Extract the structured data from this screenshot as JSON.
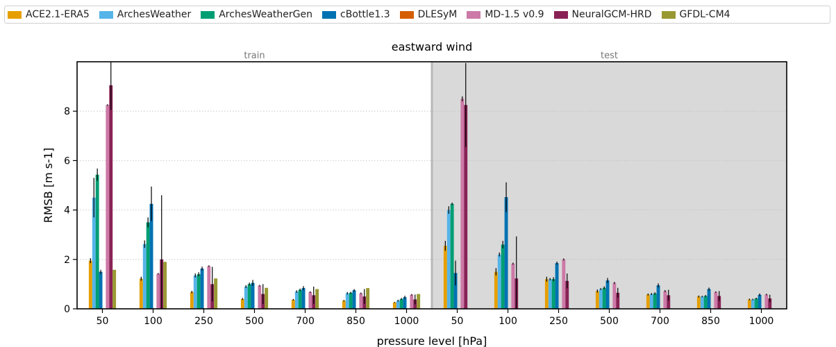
{
  "chart_data": {
    "type": "bar",
    "title": "eastward wind",
    "xlabel": "pressure level [hPa]",
    "ylabel": "RMSB [m s-1]",
    "ylim": [
      0,
      10
    ],
    "yticks": [
      0,
      2,
      4,
      6,
      8
    ],
    "grid": "horizontal dotted",
    "legend_position": "top",
    "groups": [
      {
        "label": "train",
        "shaded": false
      },
      {
        "label": "test",
        "shaded": true
      }
    ],
    "categories": [
      "50",
      "100",
      "250",
      "500",
      "700",
      "850",
      "1000",
      "50",
      "100",
      "250",
      "500",
      "700",
      "850",
      "1000"
    ],
    "series": [
      {
        "name": "ACE2.1-ERA5",
        "color": "#E69F00",
        "values": [
          1.95,
          1.22,
          0.68,
          0.4,
          0.37,
          0.33,
          0.26,
          2.55,
          1.5,
          1.2,
          0.72,
          0.58,
          0.5,
          0.38
        ],
        "err": [
          0.1,
          0.08,
          0.05,
          0.04,
          0.03,
          0.03,
          0.02,
          0.2,
          0.15,
          0.1,
          0.06,
          0.04,
          0.04,
          0.03
        ]
      },
      {
        "name": "ArchesWeather",
        "color": "#56B4E9",
        "values": [
          4.5,
          2.62,
          1.35,
          0.9,
          0.7,
          0.63,
          0.33,
          4.0,
          2.2,
          1.2,
          0.8,
          0.6,
          0.5,
          0.38
        ],
        "err": [
          0.8,
          0.15,
          0.08,
          0.06,
          0.05,
          0.05,
          0.04,
          0.15,
          0.08,
          0.05,
          0.04,
          0.04,
          0.03,
          0.03
        ]
      },
      {
        "name": "ArchesWeatherGen",
        "color": "#009E73",
        "values": [
          5.43,
          3.5,
          1.4,
          1.0,
          0.77,
          0.65,
          0.4,
          4.25,
          2.6,
          1.2,
          0.85,
          0.62,
          0.52,
          0.42
        ],
        "err": [
          0.25,
          0.2,
          0.08,
          0.06,
          0.05,
          0.04,
          0.04,
          0.05,
          0.15,
          0.08,
          0.06,
          0.05,
          0.04,
          0.03
        ]
      },
      {
        "name": "cBottle1.3",
        "color": "#0072B2",
        "values": [
          1.5,
          4.25,
          1.63,
          1.05,
          0.84,
          0.75,
          0.47,
          1.45,
          4.52,
          1.85,
          1.15,
          0.95,
          0.8,
          0.57
        ],
        "err": [
          0.08,
          0.7,
          0.08,
          0.12,
          0.08,
          0.05,
          0.06,
          0.5,
          0.6,
          0.06,
          0.1,
          0.08,
          0.06,
          0.05
        ]
      },
      {
        "name": "DLESyM",
        "color": "#D55E00",
        "values": [
          0,
          0,
          0,
          0,
          0,
          0,
          0,
          0,
          0,
          0,
          0,
          0,
          0,
          0
        ],
        "err": [
          0,
          0,
          0,
          0,
          0,
          0,
          0,
          0,
          0,
          0,
          0,
          0,
          0,
          0
        ]
      },
      {
        "name": "MD-1.5 v0.9",
        "color": "#CC79A7",
        "values": [
          8.25,
          1.42,
          1.73,
          0.94,
          0.68,
          0.63,
          0.57,
          8.5,
          1.83,
          2.0,
          1.05,
          0.72,
          0.68,
          0.58
        ],
        "err": [
          0.03,
          0.03,
          0.03,
          0.03,
          0.03,
          0.03,
          0.03,
          0.1,
          0.04,
          0.04,
          0.04,
          0.04,
          0.03,
          0.03
        ]
      },
      {
        "name": "NeuralGCM-HRD",
        "color": "#882255",
        "values": [
          9.05,
          2.0,
          1.0,
          0.6,
          0.55,
          0.5,
          0.38,
          8.25,
          1.23,
          1.13,
          0.65,
          0.55,
          0.52,
          0.42
        ],
        "err": [
          1.0,
          2.6,
          0.7,
          0.4,
          0.35,
          0.3,
          0.2,
          1.7,
          1.7,
          0.3,
          0.2,
          0.22,
          0.2,
          0.15
        ]
      },
      {
        "name": "GFDL-CM4",
        "color": "#999933",
        "values": [
          1.58,
          1.9,
          1.23,
          0.85,
          0.8,
          0.84,
          0.6,
          null,
          null,
          null,
          null,
          null,
          null,
          null
        ],
        "err": [
          0,
          0,
          0,
          0,
          0,
          0,
          0,
          0,
          0,
          0,
          0,
          0,
          0,
          0
        ]
      }
    ]
  }
}
